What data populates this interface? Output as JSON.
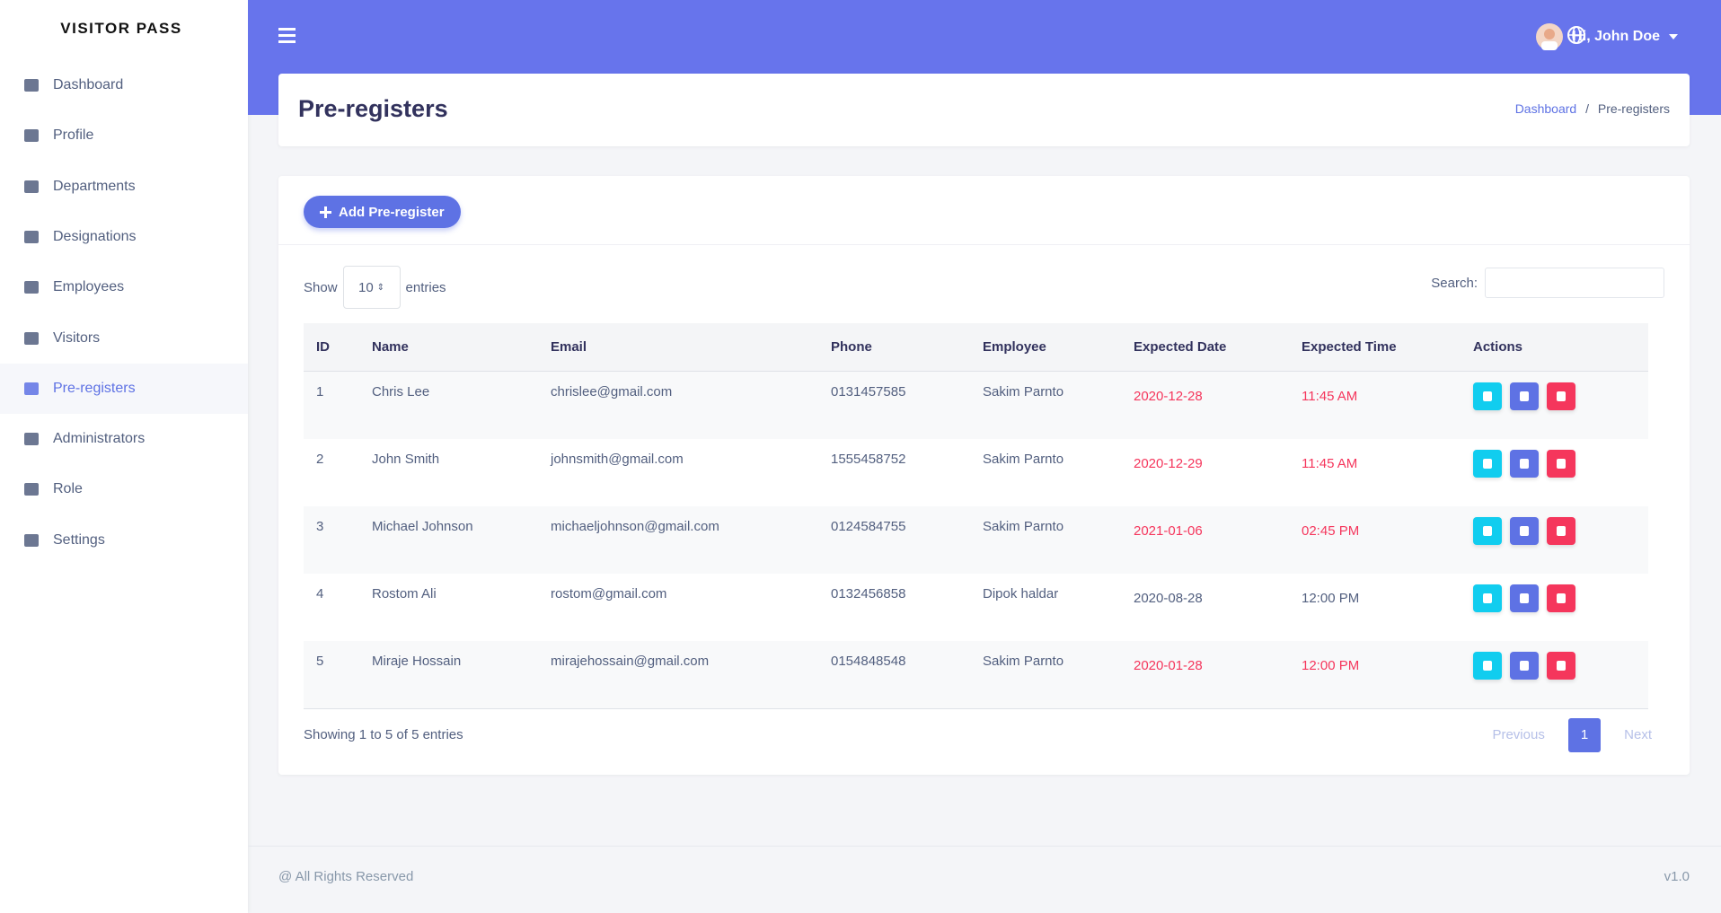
{
  "sidebar": {
    "brand": "VISITOR PASS",
    "items": [
      "Dashboard",
      "Profile",
      "Departments",
      "Designations",
      "Employees",
      "Visitors",
      "Pre-registers",
      "Administrators",
      "Role",
      "Settings"
    ],
    "active": "Pre-registers"
  },
  "topbar": {
    "user": "Hi, John Doe"
  },
  "header": {
    "title": "Pre-registers",
    "breadcrumb": [
      "Dashboard",
      "Pre-registers"
    ]
  },
  "toolbar": {
    "add_button": "Add Pre-register",
    "show": "Show",
    "page_size": "10",
    "entries": "entries",
    "search": "Search:"
  },
  "table": {
    "columns": [
      "ID",
      "Name",
      "Email",
      "Phone",
      "Employee",
      "Expected Date",
      "Expected Time",
      "Actions"
    ],
    "rows": [
      [
        "1",
        "Chris Lee",
        "chrislee@gmail.com",
        "0131457585",
        "Sakim Parnto",
        "2020-12-28",
        "11:45 AM"
      ],
      [
        "2",
        "John Smith",
        "johnsmith@gmail.com",
        "1555458752",
        "Sakim Parnto",
        "2020-12-29",
        "11:45 AM"
      ],
      [
        "3",
        "Michael Johnson",
        "michaeljohnson@gmail.com",
        "0124584755",
        "Sakim Parnto",
        "2021-01-06",
        "02:45 PM"
      ],
      [
        "4",
        "Rostom Ali",
        "rostom@gmail.com",
        "0132456858",
        "Dipok haldar",
        "2020-08-28",
        "12:00 PM"
      ],
      [
        "5",
        "Miraje Hossain",
        "mirajehossain@gmail.com",
        "0154848548",
        "Sakim Parnto",
        "2020-01-28",
        "12:00 PM"
      ]
    ],
    "date_colors": [
      "#f5365c",
      "#f5365c",
      "#f5365c",
      "#525f7f",
      "#f5365c"
    ]
  },
  "pagination": {
    "info": "Showing 1 to 5 of 5 entries",
    "previous": "Previous",
    "pages": [
      "1"
    ],
    "next": "Next"
  },
  "footer": {
    "left": "@ All Rights Reserved",
    "right": "v1.0"
  }
}
